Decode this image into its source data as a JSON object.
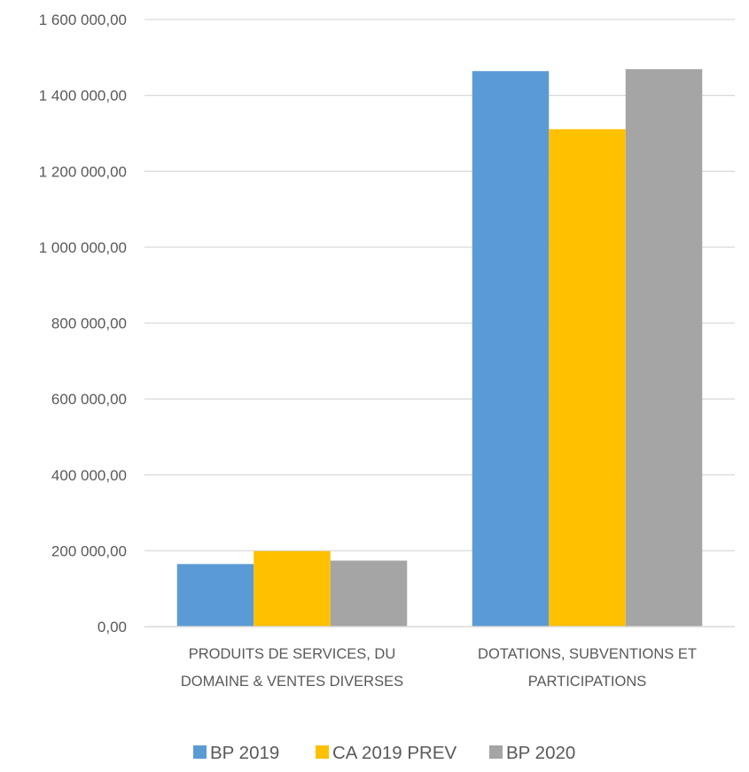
{
  "chart_data": {
    "type": "bar",
    "title": "",
    "xlabel": "",
    "ylabel": "",
    "categories": [
      [
        "PRODUITS DE SERVICES, DU",
        "DOMAINE & VENTES DIVERSES"
      ],
      [
        "DOTATIONS, SUBVENTIONS ET",
        "PARTICIPATIONS"
      ]
    ],
    "series": [
      {
        "name": "BP 2019",
        "color": "#5b9bd5",
        "values": [
          165000,
          1464000
        ]
      },
      {
        "name": "CA 2019 PREV",
        "color": "#ffc000",
        "values": [
          199000,
          1311000
        ]
      },
      {
        "name": "BP 2020",
        "color": "#a5a5a5",
        "values": [
          174000,
          1469000
        ]
      }
    ],
    "ylim": [
      0,
      1600000
    ],
    "yticks": [
      0,
      200000,
      400000,
      600000,
      800000,
      1000000,
      1200000,
      1400000,
      1600000
    ],
    "ytick_labels": [
      "0,00",
      "200 000,00",
      "400 000,00",
      "600 000,00",
      "800 000,00",
      "1 000 000,00",
      "1 200 000,00",
      "1 400 000,00",
      "1 600 000,00"
    ],
    "grid": true,
    "legend_position": "bottom"
  },
  "colors": {
    "gridline": "#d9d9d9",
    "axis": "#d9d9d9",
    "text": "#595959"
  }
}
